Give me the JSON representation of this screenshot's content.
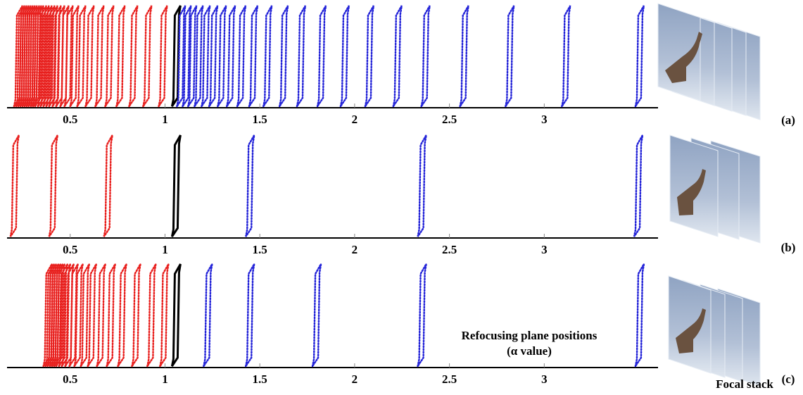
{
  "chart_data": [
    {
      "type": "planes",
      "label": "(a)",
      "xlim": [
        0.167,
        3.6
      ],
      "xticks": [
        0.5,
        1,
        1.5,
        2,
        2.5,
        3
      ],
      "series": [
        {
          "color": "#e8201e",
          "line_style": "dotted",
          "values": [
            0.204,
            0.215,
            0.226,
            0.237,
            0.248,
            0.259,
            0.27,
            0.281,
            0.293,
            0.304,
            0.315,
            0.33,
            0.344,
            0.359,
            0.374,
            0.389,
            0.407,
            0.426,
            0.448,
            0.47,
            0.5,
            0.537,
            0.581,
            0.633,
            0.685,
            0.744,
            0.811,
            0.885,
            0.967
          ]
        },
        {
          "color": "#000000",
          "line_style": "solid",
          "values": [
            1.037
          ]
        },
        {
          "color": "#2424d8",
          "line_style": "dotted",
          "values": [
            1.063,
            1.093,
            1.122,
            1.156,
            1.193,
            1.233,
            1.278,
            1.326,
            1.381,
            1.444,
            1.519,
            1.604,
            1.696,
            1.804,
            1.926,
            2.056,
            2.204,
            2.352,
            2.556,
            2.796,
            3.093,
            3.481
          ]
        }
      ]
    },
    {
      "type": "planes",
      "label": "(b)",
      "xlim": [
        0.167,
        3.6
      ],
      "xticks": [
        0.5,
        1,
        1.5,
        2,
        2.5,
        3
      ],
      "series": [
        {
          "color": "#e8201e",
          "line_style": "dotted",
          "values": [
            0.185,
            0.389,
            0.678
          ]
        },
        {
          "color": "#000000",
          "line_style": "solid",
          "values": [
            1.037
          ]
        },
        {
          "color": "#2424d8",
          "line_style": "dotted",
          "values": [
            1.426,
            2.333,
            3.474
          ]
        }
      ]
    },
    {
      "type": "planes",
      "label": "(c)",
      "xlim": [
        0.167,
        3.6
      ],
      "xticks": [
        0.5,
        1,
        1.5,
        2,
        2.5,
        3
      ],
      "annotations": [
        "Refocusing plane positions",
        "(α value)"
      ],
      "series": [
        {
          "color": "#e8201e",
          "line_style": "dotted",
          "values": [
            0.359,
            0.37,
            0.381,
            0.393,
            0.404,
            0.415,
            0.426,
            0.441,
            0.456,
            0.474,
            0.496,
            0.522,
            0.556,
            0.593,
            0.641,
            0.693,
            0.752,
            0.826,
            0.907,
            0.974
          ]
        },
        {
          "color": "#000000",
          "line_style": "solid",
          "values": [
            1.037
          ]
        },
        {
          "color": "#2424d8",
          "line_style": "dotted",
          "values": [
            1.204,
            1.426,
            1.778,
            2.333,
            3.481
          ]
        }
      ]
    }
  ],
  "focal_stack_label": "Focal stack"
}
